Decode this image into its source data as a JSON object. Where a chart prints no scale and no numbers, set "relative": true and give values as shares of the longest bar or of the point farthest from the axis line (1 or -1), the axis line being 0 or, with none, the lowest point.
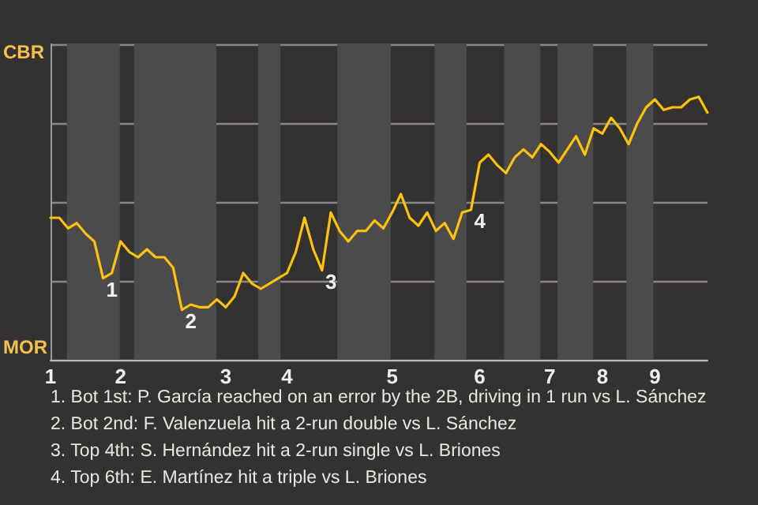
{
  "chart_data": {
    "type": "line",
    "relative": true,
    "categories": [
      "1",
      null,
      null,
      null,
      null,
      null,
      null,
      null,
      "2",
      null,
      null,
      null,
      null,
      null,
      null,
      null,
      null,
      null,
      null,
      null,
      "3",
      null,
      null,
      null,
      null,
      null,
      null,
      "4",
      null,
      null,
      null,
      null,
      null,
      null,
      null,
      null,
      null,
      null,
      null,
      "5",
      null,
      null,
      null,
      null,
      null,
      null,
      null,
      null,
      null,
      "6",
      null,
      null,
      null,
      null,
      null,
      null,
      null,
      "7",
      null,
      null,
      null,
      null,
      null,
      "8",
      null,
      null,
      null,
      null,
      null,
      "9",
      null,
      null,
      null,
      null,
      null,
      null
    ],
    "series": [
      {
        "color": "#ffc20e",
        "values": [
          0.54,
          0.54,
          0.5,
          0.52,
          0.48,
          0.45,
          0.31,
          0.33,
          0.45,
          0.41,
          0.39,
          0.42,
          0.39,
          0.39,
          0.35,
          0.19,
          0.21,
          0.2,
          0.2,
          0.23,
          0.2,
          0.24,
          0.33,
          0.29,
          0.27,
          0.29,
          0.31,
          0.33,
          0.41,
          0.54,
          0.42,
          0.34,
          0.56,
          0.49,
          0.45,
          0.49,
          0.49,
          0.53,
          0.5,
          0.56,
          0.63,
          0.54,
          0.51,
          0.56,
          0.49,
          0.52,
          0.46,
          0.56,
          0.57,
          0.75,
          0.78,
          0.74,
          0.71,
          0.77,
          0.8,
          0.77,
          0.82,
          0.79,
          0.75,
          0.8,
          0.85,
          0.78,
          0.88,
          0.86,
          0.92,
          0.88,
          0.82,
          0.9,
          0.96,
          0.99,
          0.95,
          0.96,
          0.96,
          0.99,
          1,
          0.94
        ]
      }
    ],
    "grid": "y",
    "annotations": [
      {
        "text": "1",
        "y": 0.31
      },
      {
        "text": "2",
        "y": 0.19
      },
      {
        "text": "3",
        "y": 0.34
      },
      {
        "text": "4",
        "y": 0.57
      },
      "CBR",
      "MOR",
      "1. Bot 1st: P. García reached on an error by the 2B, driving in 1 run vs L. Sánchez",
      "2. Bot 2nd: F. Valenzuela hit a 2-run double vs L. Sánchez",
      "3. Top 4th: S. Hernández hit a 2-run single vs L. Briones",
      "4. Top 6th: E. Martínez hit a triple vs L. Briones"
    ]
  }
}
